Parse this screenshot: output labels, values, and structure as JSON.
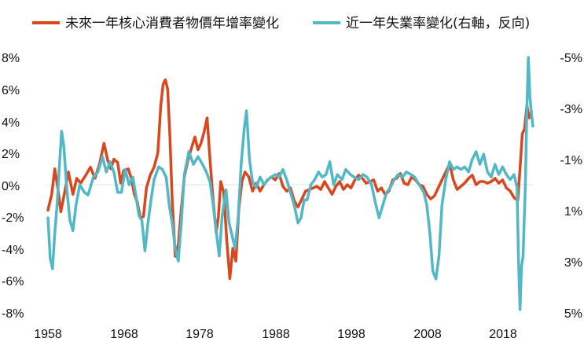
{
  "chart_data": {
    "type": "line",
    "title": "",
    "legend_position": "top",
    "grid": false,
    "x": {
      "ticks": [
        "1958",
        "1968",
        "1978",
        "1988",
        "1998",
        "2008",
        "2018"
      ],
      "range": [
        1958,
        2022
      ]
    },
    "y_left": {
      "ticks": [
        "8%",
        "6%",
        "4%",
        "2%",
        "0%",
        "-2%",
        "-4%",
        "-6%",
        "-8%"
      ],
      "range": [
        -8,
        8
      ],
      "unit": "%"
    },
    "y_right": {
      "ticks": [
        "-5%",
        "-3%",
        "-1%",
        "1%",
        "3%",
        "5%"
      ],
      "range": [
        -5,
        5
      ],
      "inverted": true,
      "unit": "%"
    },
    "series": [
      {
        "name": "未來一年核心消費者物價年增率變化",
        "color": "#d9471f",
        "axis": "left",
        "points": [
          [
            1958.0,
            -1.6
          ],
          [
            1958.5,
            -0.6
          ],
          [
            1958.9,
            1.0
          ],
          [
            1959.3,
            -0.2
          ],
          [
            1959.7,
            -1.7
          ],
          [
            1960.2,
            -0.5
          ],
          [
            1960.7,
            0.8
          ],
          [
            1961.3,
            -0.6
          ],
          [
            1961.8,
            0.4
          ],
          [
            1962.3,
            0.1
          ],
          [
            1963.0,
            0.6
          ],
          [
            1963.6,
            1.1
          ],
          [
            1964.2,
            0.4
          ],
          [
            1964.8,
            1.3
          ],
          [
            1965.4,
            2.6
          ],
          [
            1965.9,
            1.5
          ],
          [
            1966.3,
            1.0
          ],
          [
            1966.7,
            1.6
          ],
          [
            1967.2,
            1.4
          ],
          [
            1967.6,
            0.1
          ],
          [
            1968.0,
            0.9
          ],
          [
            1968.6,
            1.0
          ],
          [
            1969.0,
            0.4
          ],
          [
            1969.4,
            -0.6
          ],
          [
            1969.8,
            -1.1
          ],
          [
            1970.2,
            -2.1
          ],
          [
            1970.6,
            -2.0
          ],
          [
            1971.0,
            -0.2
          ],
          [
            1971.5,
            0.6
          ],
          [
            1972.0,
            1.1
          ],
          [
            1972.5,
            2.0
          ],
          [
            1972.9,
            5.0
          ],
          [
            1973.2,
            6.3
          ],
          [
            1973.5,
            6.6
          ],
          [
            1973.8,
            6.0
          ],
          [
            1974.1,
            3.0
          ],
          [
            1974.4,
            -1.0
          ],
          [
            1974.8,
            -4.5
          ],
          [
            1975.2,
            -3.8
          ],
          [
            1975.6,
            -1.5
          ],
          [
            1976.0,
            0.5
          ],
          [
            1976.5,
            1.6
          ],
          [
            1977.0,
            2.4
          ],
          [
            1977.4,
            3.0
          ],
          [
            1977.8,
            2.2
          ],
          [
            1978.2,
            2.6
          ],
          [
            1978.6,
            3.3
          ],
          [
            1979.0,
            4.2
          ],
          [
            1979.4,
            1.5
          ],
          [
            1979.8,
            -1.0
          ],
          [
            1980.2,
            -3.0
          ],
          [
            1980.5,
            -2.0
          ],
          [
            1980.8,
            0.2
          ],
          [
            1981.2,
            -0.5
          ],
          [
            1981.6,
            -3.5
          ],
          [
            1982.0,
            -5.9
          ],
          [
            1982.4,
            -4.0
          ],
          [
            1982.8,
            -4.8
          ],
          [
            1983.2,
            -1.5
          ],
          [
            1983.6,
            0.2
          ],
          [
            1984.0,
            0.8
          ],
          [
            1984.5,
            0.5
          ],
          [
            1985.0,
            -0.4
          ],
          [
            1985.5,
            0.1
          ],
          [
            1986.0,
            -0.4
          ],
          [
            1986.5,
            0.0
          ],
          [
            1987.0,
            0.3
          ],
          [
            1987.5,
            0.5
          ],
          [
            1988.0,
            0.3
          ],
          [
            1988.5,
            0.7
          ],
          [
            1989.0,
            -0.1
          ],
          [
            1989.5,
            -0.4
          ],
          [
            1990.0,
            -0.2
          ],
          [
            1990.5,
            -1.0
          ],
          [
            1991.0,
            -1.4
          ],
          [
            1991.5,
            -0.9
          ],
          [
            1992.0,
            -0.4
          ],
          [
            1992.5,
            -0.3
          ],
          [
            1993.0,
            -0.2
          ],
          [
            1993.5,
            -0.1
          ],
          [
            1994.0,
            -0.3
          ],
          [
            1994.5,
            0.2
          ],
          [
            1995.0,
            -0.2
          ],
          [
            1995.5,
            -0.6
          ],
          [
            1996.0,
            -0.1
          ],
          [
            1996.5,
            0.2
          ],
          [
            1997.0,
            -0.3
          ],
          [
            1997.5,
            0.0
          ],
          [
            1998.0,
            -0.2
          ],
          [
            1998.5,
            0.3
          ],
          [
            1999.0,
            0.6
          ],
          [
            1999.5,
            0.4
          ],
          [
            2000.0,
            0.1
          ],
          [
            2000.5,
            0.2
          ],
          [
            2001.0,
            0.3
          ],
          [
            2001.5,
            -0.4
          ],
          [
            2002.0,
            -0.2
          ],
          [
            2002.5,
            -0.6
          ],
          [
            2003.0,
            -0.4
          ],
          [
            2003.5,
            0.3
          ],
          [
            2004.0,
            0.4
          ],
          [
            2004.5,
            0.7
          ],
          [
            2005.0,
            0.1
          ],
          [
            2005.5,
            0.0
          ],
          [
            2006.0,
            0.5
          ],
          [
            2006.5,
            0.3
          ],
          [
            2007.0,
            0.0
          ],
          [
            2007.5,
            -0.1
          ],
          [
            2008.0,
            -0.6
          ],
          [
            2008.5,
            -0.9
          ],
          [
            2009.0,
            -0.7
          ],
          [
            2009.5,
            -0.2
          ],
          [
            2010.0,
            0.3
          ],
          [
            2010.5,
            0.8
          ],
          [
            2011.0,
            1.3
          ],
          [
            2011.5,
            0.3
          ],
          [
            2012.0,
            -0.3
          ],
          [
            2012.5,
            -0.1
          ],
          [
            2013.0,
            0.1
          ],
          [
            2013.5,
            0.4
          ],
          [
            2014.0,
            0.6
          ],
          [
            2014.5,
            0.0
          ],
          [
            2015.0,
            0.2
          ],
          [
            2015.5,
            0.2
          ],
          [
            2016.0,
            0.1
          ],
          [
            2016.5,
            0.2
          ],
          [
            2017.0,
            0.4
          ],
          [
            2017.5,
            0.1
          ],
          [
            2018.0,
            0.3
          ],
          [
            2018.5,
            -0.2
          ],
          [
            2019.0,
            -0.4
          ],
          [
            2019.5,
            -0.8
          ],
          [
            2020.0,
            -1.0
          ],
          [
            2020.3,
            1.0
          ],
          [
            2020.6,
            3.2
          ],
          [
            2020.9,
            3.5
          ],
          [
            2021.2,
            5.0
          ],
          [
            2021.5,
            4.2
          ],
          [
            2021.8,
            4.6
          ]
        ]
      },
      {
        "name": "近一年失業率變化(右軸，反向)",
        "color": "#52b8c6",
        "axis": "right",
        "points": [
          [
            1958.0,
            1.3
          ],
          [
            1958.3,
            2.9
          ],
          [
            1958.6,
            3.3
          ],
          [
            1958.9,
            1.9
          ],
          [
            1959.2,
            0.8
          ],
          [
            1959.5,
            -0.7
          ],
          [
            1959.8,
            -2.1
          ],
          [
            1960.1,
            -1.5
          ],
          [
            1960.5,
            0.2
          ],
          [
            1960.9,
            1.4
          ],
          [
            1961.3,
            1.8
          ],
          [
            1961.7,
            0.8
          ],
          [
            1962.2,
            0.0
          ],
          [
            1962.8,
            0.3
          ],
          [
            1963.3,
            0.4
          ],
          [
            1964.0,
            -0.3
          ],
          [
            1964.6,
            -0.5
          ],
          [
            1965.2,
            -1.1
          ],
          [
            1965.7,
            -0.5
          ],
          [
            1966.2,
            -0.9
          ],
          [
            1966.7,
            -0.5
          ],
          [
            1967.2,
            0.3
          ],
          [
            1967.7,
            0.3
          ],
          [
            1968.2,
            -0.6
          ],
          [
            1968.7,
            0.0
          ],
          [
            1969.2,
            -0.3
          ],
          [
            1969.6,
            0.4
          ],
          [
            1970.0,
            1.2
          ],
          [
            1970.4,
            1.4
          ],
          [
            1970.8,
            2.6
          ],
          [
            1971.2,
            1.5
          ],
          [
            1971.6,
            0.6
          ],
          [
            1972.0,
            -0.2
          ],
          [
            1972.6,
            -0.7
          ],
          [
            1973.1,
            -0.6
          ],
          [
            1973.6,
            -0.3
          ],
          [
            1974.0,
            0.8
          ],
          [
            1974.4,
            1.5
          ],
          [
            1974.8,
            2.5
          ],
          [
            1975.2,
            3.0
          ],
          [
            1975.6,
            1.5
          ],
          [
            1976.0,
            -0.4
          ],
          [
            1976.6,
            -1.3
          ],
          [
            1977.2,
            -0.8
          ],
          [
            1977.8,
            -1.1
          ],
          [
            1978.4,
            -0.8
          ],
          [
            1978.9,
            -0.5
          ],
          [
            1979.4,
            -0.1
          ],
          [
            1979.8,
            0.8
          ],
          [
            1980.2,
            1.8
          ],
          [
            1980.6,
            2.8
          ],
          [
            1981.0,
            1.2
          ],
          [
            1981.5,
            0.2
          ],
          [
            1981.9,
            1.5
          ],
          [
            1982.3,
            2.0
          ],
          [
            1982.7,
            2.5
          ],
          [
            1983.1,
            1.3
          ],
          [
            1983.5,
            -0.8
          ],
          [
            1983.9,
            -2.2
          ],
          [
            1984.2,
            -2.9
          ],
          [
            1984.6,
            -1.0
          ],
          [
            1985.0,
            -0.1
          ],
          [
            1985.5,
            0.1
          ],
          [
            1986.0,
            -0.3
          ],
          [
            1986.5,
            0.0
          ],
          [
            1987.0,
            -0.2
          ],
          [
            1987.5,
            -0.3
          ],
          [
            1988.0,
            -0.4
          ],
          [
            1988.5,
            -0.3
          ],
          [
            1989.0,
            -0.6
          ],
          [
            1989.5,
            -0.2
          ],
          [
            1990.0,
            0.3
          ],
          [
            1990.5,
            0.8
          ],
          [
            1991.0,
            1.5
          ],
          [
            1991.4,
            1.3
          ],
          [
            1991.8,
            0.6
          ],
          [
            1992.2,
            0.6
          ],
          [
            1992.7,
            0.0
          ],
          [
            1993.2,
            -0.2
          ],
          [
            1993.7,
            -0.5
          ],
          [
            1994.2,
            -0.3
          ],
          [
            1994.7,
            -0.4
          ],
          [
            1995.2,
            -0.9
          ],
          [
            1995.7,
            0.0
          ],
          [
            1996.2,
            -0.4
          ],
          [
            1996.8,
            -0.2
          ],
          [
            1997.3,
            -0.6
          ],
          [
            1997.9,
            -0.4
          ],
          [
            1998.4,
            -0.3
          ],
          [
            1999.0,
            -0.2
          ],
          [
            1999.6,
            -0.4
          ],
          [
            2000.1,
            -0.3
          ],
          [
            2000.7,
            0.0
          ],
          [
            2001.2,
            0.7
          ],
          [
            2001.7,
            1.3
          ],
          [
            2002.2,
            0.8
          ],
          [
            2002.7,
            0.3
          ],
          [
            2003.2,
            0.1
          ],
          [
            2003.7,
            -0.2
          ],
          [
            2004.2,
            -0.4
          ],
          [
            2004.8,
            -0.3
          ],
          [
            2005.3,
            -0.5
          ],
          [
            2005.9,
            -0.4
          ],
          [
            2006.4,
            -0.3
          ],
          [
            2007.0,
            0.0
          ],
          [
            2007.6,
            0.3
          ],
          [
            2008.0,
            0.8
          ],
          [
            2008.4,
            1.9
          ],
          [
            2008.8,
            3.4
          ],
          [
            2009.2,
            3.7
          ],
          [
            2009.6,
            2.8
          ],
          [
            2010.0,
            0.8
          ],
          [
            2010.5,
            -0.2
          ],
          [
            2011.0,
            -0.9
          ],
          [
            2011.5,
            -0.6
          ],
          [
            2012.0,
            -0.7
          ],
          [
            2012.5,
            -0.6
          ],
          [
            2013.0,
            -0.7
          ],
          [
            2013.5,
            -0.5
          ],
          [
            2014.0,
            -1.0
          ],
          [
            2014.5,
            -1.3
          ],
          [
            2015.0,
            -0.8
          ],
          [
            2015.5,
            -1.2
          ],
          [
            2016.0,
            -0.5
          ],
          [
            2016.5,
            -0.3
          ],
          [
            2017.0,
            -0.8
          ],
          [
            2017.5,
            -0.4
          ],
          [
            2018.0,
            -0.7
          ],
          [
            2018.5,
            -0.4
          ],
          [
            2019.0,
            -0.2
          ],
          [
            2019.5,
            -0.4
          ],
          [
            2019.9,
            0.1
          ],
          [
            2020.1,
            3.0
          ],
          [
            2020.3,
            4.9
          ],
          [
            2020.5,
            3.2
          ],
          [
            2020.7,
            2.8
          ],
          [
            2021.0,
            0.0
          ],
          [
            2021.2,
            -3.0
          ],
          [
            2021.4,
            -5.0
          ],
          [
            2021.6,
            -3.5
          ],
          [
            2021.8,
            -2.8
          ],
          [
            2022.0,
            -2.3
          ]
        ]
      }
    ]
  }
}
